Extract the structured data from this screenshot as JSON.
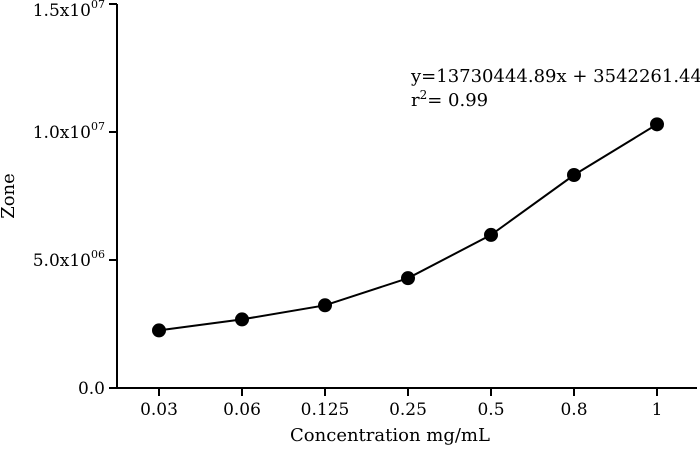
{
  "chart_data": {
    "type": "line",
    "xlabel": "Concentration mg/mL",
    "ylabel": "Zone",
    "categories": [
      "0.03",
      "0.06",
      "0.125",
      "0.25",
      "0.5",
      "0.8",
      "1"
    ],
    "series": [
      {
        "values": [
          2250000,
          2680000,
          3230000,
          4290000,
          5980000,
          8320000,
          10300000
        ]
      }
    ],
    "ylim": [
      0,
      15000000
    ],
    "yticks": [
      {
        "value": 0,
        "label": "0.0"
      },
      {
        "value": 5000000,
        "label": "5.0x10",
        "exp": "06"
      },
      {
        "value": 10000000,
        "label": "1.0x10",
        "exp": "07"
      },
      {
        "value": 15000000,
        "label": "1.5x10",
        "exp": "07"
      }
    ],
    "annotations": {
      "equation": "y=13730444.89x + 3542261.44",
      "r2_prefix": "r",
      "r2_exp": "2",
      "r2_value": "= 0.99"
    },
    "grid": false,
    "legend": "none"
  }
}
